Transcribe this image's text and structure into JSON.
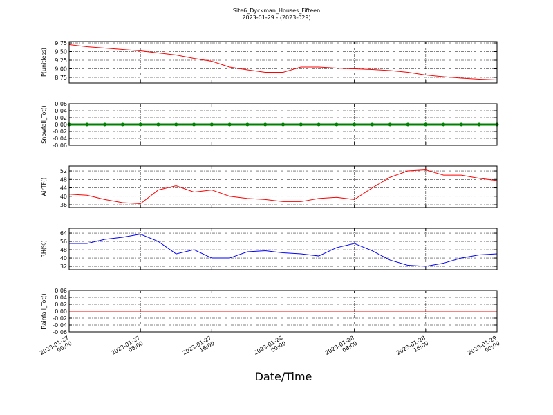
{
  "title": "Site6_Dyckman_Houses_Fifteen",
  "subtitle": "2023-01-29 - (2023-029)",
  "xlabel": "Date/Time",
  "chart_data": [
    {
      "type": "line",
      "ylabel": "P(unitless)",
      "color": "#ff0000",
      "x": [
        "2023-01-27 00:00",
        "2023-01-27 02:00",
        "2023-01-27 04:00",
        "2023-01-27 06:00",
        "2023-01-27 08:00",
        "2023-01-27 10:00",
        "2023-01-27 12:00",
        "2023-01-27 14:00",
        "2023-01-27 16:00",
        "2023-01-27 18:00",
        "2023-01-27 20:00",
        "2023-01-27 22:00",
        "2023-01-28 00:00",
        "2023-01-28 02:00",
        "2023-01-28 04:00",
        "2023-01-28 06:00",
        "2023-01-28 08:00",
        "2023-01-28 10:00",
        "2023-01-28 12:00",
        "2023-01-28 14:00",
        "2023-01-28 16:00",
        "2023-01-28 18:00",
        "2023-01-28 20:00",
        "2023-01-28 22:00",
        "2023-01-29 00:00"
      ],
      "values": [
        9.7,
        9.64,
        9.6,
        9.56,
        9.52,
        9.46,
        9.4,
        9.3,
        9.22,
        9.05,
        8.97,
        8.9,
        8.9,
        9.05,
        9.05,
        9.02,
        9.0,
        8.98,
        8.95,
        8.9,
        8.82,
        8.77,
        8.73,
        8.7,
        8.68
      ],
      "xlim": [
        "2023-01-27 00:00",
        "2023-01-29 00:00"
      ],
      "xticks": [
        "2023-01-27 00:00",
        "2023-01-27 08:00",
        "2023-01-27 16:00",
        "2023-01-28 00:00",
        "2023-01-28 08:00",
        "2023-01-28 16:00",
        "2023-01-29 00:00"
      ],
      "ylim": [
        8.59,
        9.79
      ],
      "yticks": [
        8.75,
        {
          "value": 9.0,
          "label": "9.00"
        },
        9.25,
        {
          "value": 9.5,
          "label": "9.50"
        },
        9.75
      ],
      "grid": true
    },
    {
      "type": "line",
      "ylabel": "Snowfall_Tot()",
      "color": "#008000",
      "markers": true,
      "x": [
        "2023-01-27 00:00",
        "2023-01-27 02:00",
        "2023-01-27 04:00",
        "2023-01-27 06:00",
        "2023-01-27 08:00",
        "2023-01-27 10:00",
        "2023-01-27 12:00",
        "2023-01-27 14:00",
        "2023-01-27 16:00",
        "2023-01-27 18:00",
        "2023-01-27 20:00",
        "2023-01-27 22:00",
        "2023-01-28 00:00",
        "2023-01-28 02:00",
        "2023-01-28 04:00",
        "2023-01-28 06:00",
        "2023-01-28 08:00",
        "2023-01-28 10:00",
        "2023-01-28 12:00",
        "2023-01-28 14:00",
        "2023-01-28 16:00",
        "2023-01-28 18:00",
        "2023-01-28 20:00",
        "2023-01-28 22:00",
        "2023-01-29 00:00"
      ],
      "values": [
        0,
        0,
        0,
        0,
        0,
        0,
        0,
        0,
        0,
        0,
        0,
        0,
        0,
        0,
        0,
        0,
        0,
        0,
        0,
        0,
        0,
        0,
        0,
        0,
        0
      ],
      "xlim": [
        "2023-01-27 00:00",
        "2023-01-29 00:00"
      ],
      "xticks": [
        "2023-01-27 00:00",
        "2023-01-27 08:00",
        "2023-01-27 16:00",
        "2023-01-28 00:00",
        "2023-01-28 08:00",
        "2023-01-28 16:00",
        "2023-01-29 00:00"
      ],
      "ylim": [
        -0.06,
        0.06
      ],
      "yticks": [
        -0.06,
        -0.04,
        -0.02,
        {
          "value": 0,
          "label": "0.00"
        },
        0.02,
        0.04,
        0.06
      ],
      "grid": true
    },
    {
      "type": "line",
      "ylabel": "AirTF()",
      "color": "#ff0000",
      "x": [
        "2023-01-27 00:00",
        "2023-01-27 02:00",
        "2023-01-27 04:00",
        "2023-01-27 06:00",
        "2023-01-27 08:00",
        "2023-01-27 10:00",
        "2023-01-27 12:00",
        "2023-01-27 14:00",
        "2023-01-27 16:00",
        "2023-01-27 18:00",
        "2023-01-27 20:00",
        "2023-01-27 22:00",
        "2023-01-28 00:00",
        "2023-01-28 02:00",
        "2023-01-28 04:00",
        "2023-01-28 06:00",
        "2023-01-28 08:00",
        "2023-01-28 10:00",
        "2023-01-28 12:00",
        "2023-01-28 14:00",
        "2023-01-28 16:00",
        "2023-01-28 18:00",
        "2023-01-28 20:00",
        "2023-01-28 22:00",
        "2023-01-29 00:00"
      ],
      "values": [
        41,
        40.5,
        38.5,
        37,
        36.5,
        43,
        45,
        42,
        43,
        40,
        39,
        38.5,
        37.5,
        37.5,
        39,
        39.5,
        38.5,
        44,
        49,
        52,
        52.5,
        50,
        50,
        48.5,
        47.5
      ],
      "xlim": [
        "2023-01-27 00:00",
        "2023-01-29 00:00"
      ],
      "xticks": [
        "2023-01-27 00:00",
        "2023-01-27 08:00",
        "2023-01-27 16:00",
        "2023-01-28 00:00",
        "2023-01-28 08:00",
        "2023-01-28 16:00",
        "2023-01-29 00:00"
      ],
      "ylim": [
        34.7,
        54.3
      ],
      "yticks": [
        36,
        40,
        44,
        48,
        52
      ],
      "grid": true
    },
    {
      "type": "line",
      "ylabel": "RH(%)",
      "color": "#0000ff",
      "x": [
        "2023-01-27 00:00",
        "2023-01-27 02:00",
        "2023-01-27 04:00",
        "2023-01-27 06:00",
        "2023-01-27 08:00",
        "2023-01-27 10:00",
        "2023-01-27 12:00",
        "2023-01-27 14:00",
        "2023-01-27 16:00",
        "2023-01-27 18:00",
        "2023-01-27 20:00",
        "2023-01-27 22:00",
        "2023-01-28 00:00",
        "2023-01-28 02:00",
        "2023-01-28 04:00",
        "2023-01-28 06:00",
        "2023-01-28 08:00",
        "2023-01-28 10:00",
        "2023-01-28 12:00",
        "2023-01-28 14:00",
        "2023-01-28 16:00",
        "2023-01-28 18:00",
        "2023-01-28 20:00",
        "2023-01-28 22:00",
        "2023-01-29 00:00"
      ],
      "values": [
        54,
        54,
        58,
        60,
        63,
        56,
        44,
        48,
        40,
        40,
        46,
        47,
        45,
        44,
        42,
        50,
        54,
        47,
        38,
        33,
        32,
        35,
        40,
        43,
        44
      ],
      "xlim": [
        "2023-01-27 00:00",
        "2023-01-29 00:00"
      ],
      "xticks": [
        "2023-01-27 00:00",
        "2023-01-27 08:00",
        "2023-01-27 16:00",
        "2023-01-28 00:00",
        "2023-01-28 08:00",
        "2023-01-28 16:00",
        "2023-01-29 00:00"
      ],
      "ylim": [
        28.7,
        68.7
      ],
      "yticks": [
        32,
        40,
        48,
        56,
        64
      ],
      "grid": true
    },
    {
      "type": "line",
      "ylabel": "Rainfall_Tot()",
      "color": "#ff0000",
      "x": [
        "2023-01-27 00:00",
        "2023-01-27 02:00",
        "2023-01-27 04:00",
        "2023-01-27 06:00",
        "2023-01-27 08:00",
        "2023-01-27 10:00",
        "2023-01-27 12:00",
        "2023-01-27 14:00",
        "2023-01-27 16:00",
        "2023-01-27 18:00",
        "2023-01-27 20:00",
        "2023-01-27 22:00",
        "2023-01-28 00:00",
        "2023-01-28 02:00",
        "2023-01-28 04:00",
        "2023-01-28 06:00",
        "2023-01-28 08:00",
        "2023-01-28 10:00",
        "2023-01-28 12:00",
        "2023-01-28 14:00",
        "2023-01-28 16:00",
        "2023-01-28 18:00",
        "2023-01-28 20:00",
        "2023-01-28 22:00",
        "2023-01-29 00:00"
      ],
      "values": [
        0,
        0,
        0,
        0,
        0,
        0,
        0,
        0,
        0,
        0,
        0,
        0,
        0,
        0,
        0,
        0,
        0,
        0,
        0,
        0,
        0,
        0,
        0,
        0,
        0
      ],
      "xlim": [
        "2023-01-27 00:00",
        "2023-01-29 00:00"
      ],
      "xticks": [
        "2023-01-27 00:00",
        "2023-01-27 08:00",
        "2023-01-27 16:00",
        "2023-01-28 00:00",
        "2023-01-28 08:00",
        "2023-01-28 16:00",
        "2023-01-29 00:00"
      ],
      "xticklabels": true,
      "ylim": [
        -0.06,
        0.06
      ],
      "yticks": [
        -0.06,
        -0.04,
        -0.02,
        {
          "value": 0,
          "label": "0.00"
        },
        0.02,
        0.04,
        0.06
      ],
      "grid": true
    }
  ]
}
